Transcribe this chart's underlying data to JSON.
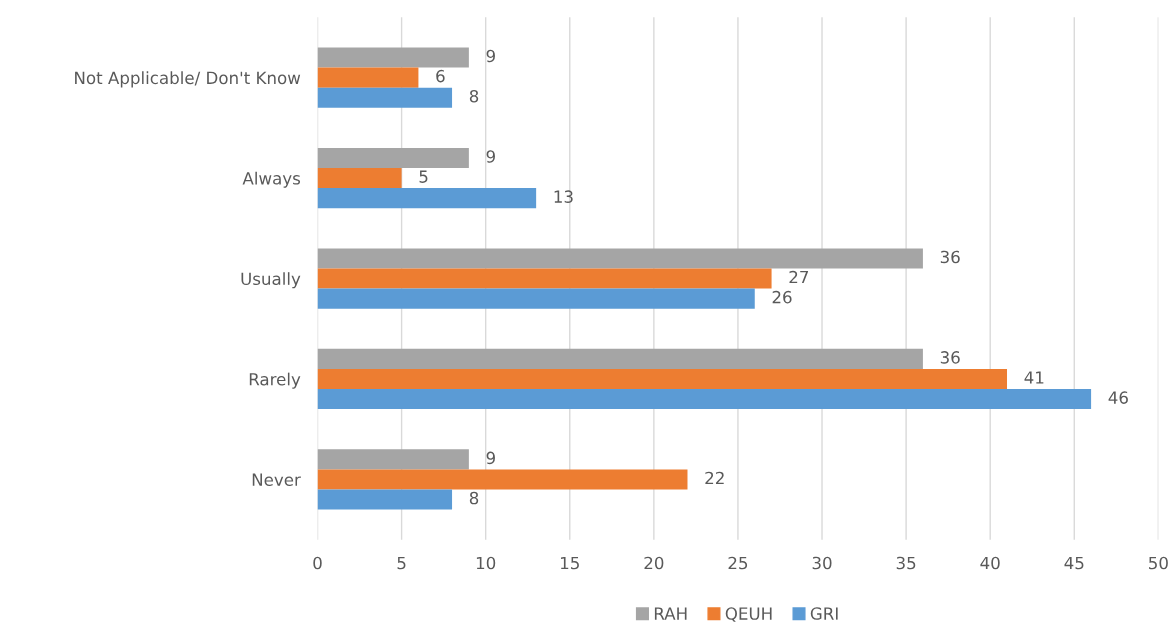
{
  "chart_data": {
    "type": "bar",
    "orientation": "horizontal",
    "categories": [
      "Not Applicable/ Don't Know",
      "Always",
      "Usually",
      "Rarely",
      "Never"
    ],
    "series": [
      {
        "name": "RAH",
        "color": "#a5a5a5",
        "values": [
          9,
          9,
          36,
          36,
          9
        ]
      },
      {
        "name": "QEUH",
        "color": "#ed7d31",
        "values": [
          6,
          5,
          27,
          41,
          22
        ]
      },
      {
        "name": "GRI",
        "color": "#5b9bd5",
        "values": [
          8,
          13,
          26,
          46,
          8
        ]
      }
    ],
    "xlim": [
      0,
      50
    ],
    "xticks": [
      0,
      5,
      10,
      15,
      20,
      25,
      30,
      35,
      40,
      45,
      50
    ],
    "grid": "x",
    "legend": "bottom",
    "data_labels": true
  }
}
